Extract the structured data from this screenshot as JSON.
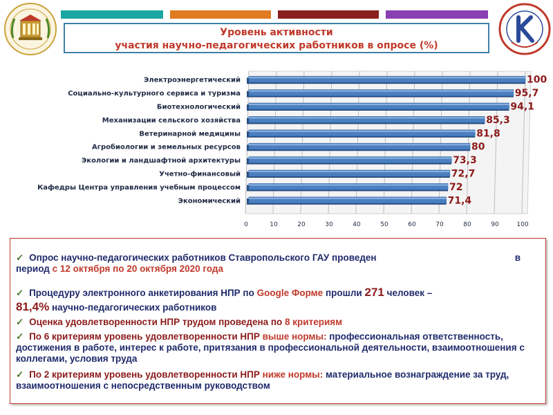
{
  "header": {
    "title_line1": "Уровень активности",
    "title_line2": "участия  научно-педагогических работников  в опросе (%)",
    "top_bar_colors": [
      "#1aa7a4",
      "#e07b22",
      "#8b1f1f",
      "#8a3fb2"
    ]
  },
  "logos": {
    "left_icon": "university-emblem-icon",
    "right_icon": "quality-seal-icon"
  },
  "chart_data": {
    "type": "bar",
    "orientation": "horizontal",
    "categories": [
      "Электроэнергетический",
      "Социально-культурного  сервиса и туризма",
      "Биотехнологический",
      "Механизации сельского хозяйства",
      "Ветеринарной медицины",
      "Агробиологии и земельных ресурсов",
      "Экологии и ландшафтной архитектуры",
      "Учетно-финансовый",
      "Кафедры Центра управления учебным процессом",
      "Экономический"
    ],
    "values": [
      100,
      95.7,
      94.1,
      85.3,
      81.8,
      80,
      73.3,
      72.7,
      72,
      71.4
    ],
    "value_labels": [
      "100",
      "95,7",
      "94,1",
      "85,3",
      "81,8",
      "80",
      "73,3",
      "72,7",
      "72",
      "71,4"
    ],
    "xticks": [
      "0",
      "10",
      "20",
      "30",
      "40",
      "50",
      "60",
      "70",
      "80",
      "90",
      "100"
    ],
    "xlim": [
      0,
      100
    ],
    "grid": "vertical",
    "bar_color": "#4a7fc1"
  },
  "info": {
    "b1_text": "Опрос научно-педагогических работников Ставропольского ГАУ проведен",
    "b1_in": "в",
    "b1_period": "период",
    "b1_dates": "с 12 октября по 20 октября 2020 года",
    "b2_pre": "Процедуру электронного анкетирования НПР по",
    "b2_google": "Google Форме",
    "b2_mid": "прошли",
    "b2_count": "271",
    "b2_post": "человек  –",
    "b2_pct": "81,4%",
    "b2_tail": "научно-педагогических работников",
    "b3_pre": "Оценка удовлетворенности НПР трудом проведена по",
    "b3_crit": "8 критериям",
    "b4_pre": "По 6 критериям уровень удовлетворенности НПР",
    "b4_hl": "выше нормы:",
    "b4_text": "профессиональная ответственность, достижения в работе, интерес к работе, притязания в профессиональной деятельности, взаимоотношения с коллегами, условия труда",
    "b5_pre": "По 2 критериям уровень удовлетворенности НПР",
    "b5_hl": "ниже нормы:",
    "b5_text": "материальное вознаграждение за труд, взаимоотношения с непосредственным руководством"
  }
}
